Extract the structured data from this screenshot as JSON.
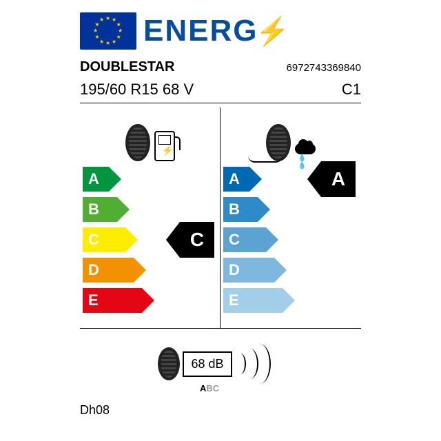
{
  "header": {
    "word": "ENERG"
  },
  "brand": "DOUBLESTAR",
  "barcode": "6972743369840",
  "tire_size": "195/60 R15 68 V",
  "class_code": "C1",
  "fuel": {
    "grades": [
      "A",
      "B",
      "C",
      "D",
      "E"
    ],
    "colors": [
      "#009640",
      "#52ae32",
      "#ffed00",
      "#f39200",
      "#e30613"
    ],
    "widths": [
      38,
      50,
      62,
      74,
      86
    ],
    "rating": "C",
    "rating_index": 2
  },
  "wet": {
    "grades": [
      "A",
      "B",
      "C",
      "D",
      "E"
    ],
    "colors": [
      "#0069b4",
      "#2e8bc9",
      "#5ba3d3",
      "#7eb8de",
      "#a2cee9"
    ],
    "widths": [
      38,
      50,
      62,
      74,
      86
    ],
    "rating": "A",
    "rating_index": 0
  },
  "noise": {
    "value_label": "68 dB",
    "class_letters": [
      "A",
      "B",
      "C"
    ],
    "active_index": 0
  },
  "footnote": "Dh08"
}
